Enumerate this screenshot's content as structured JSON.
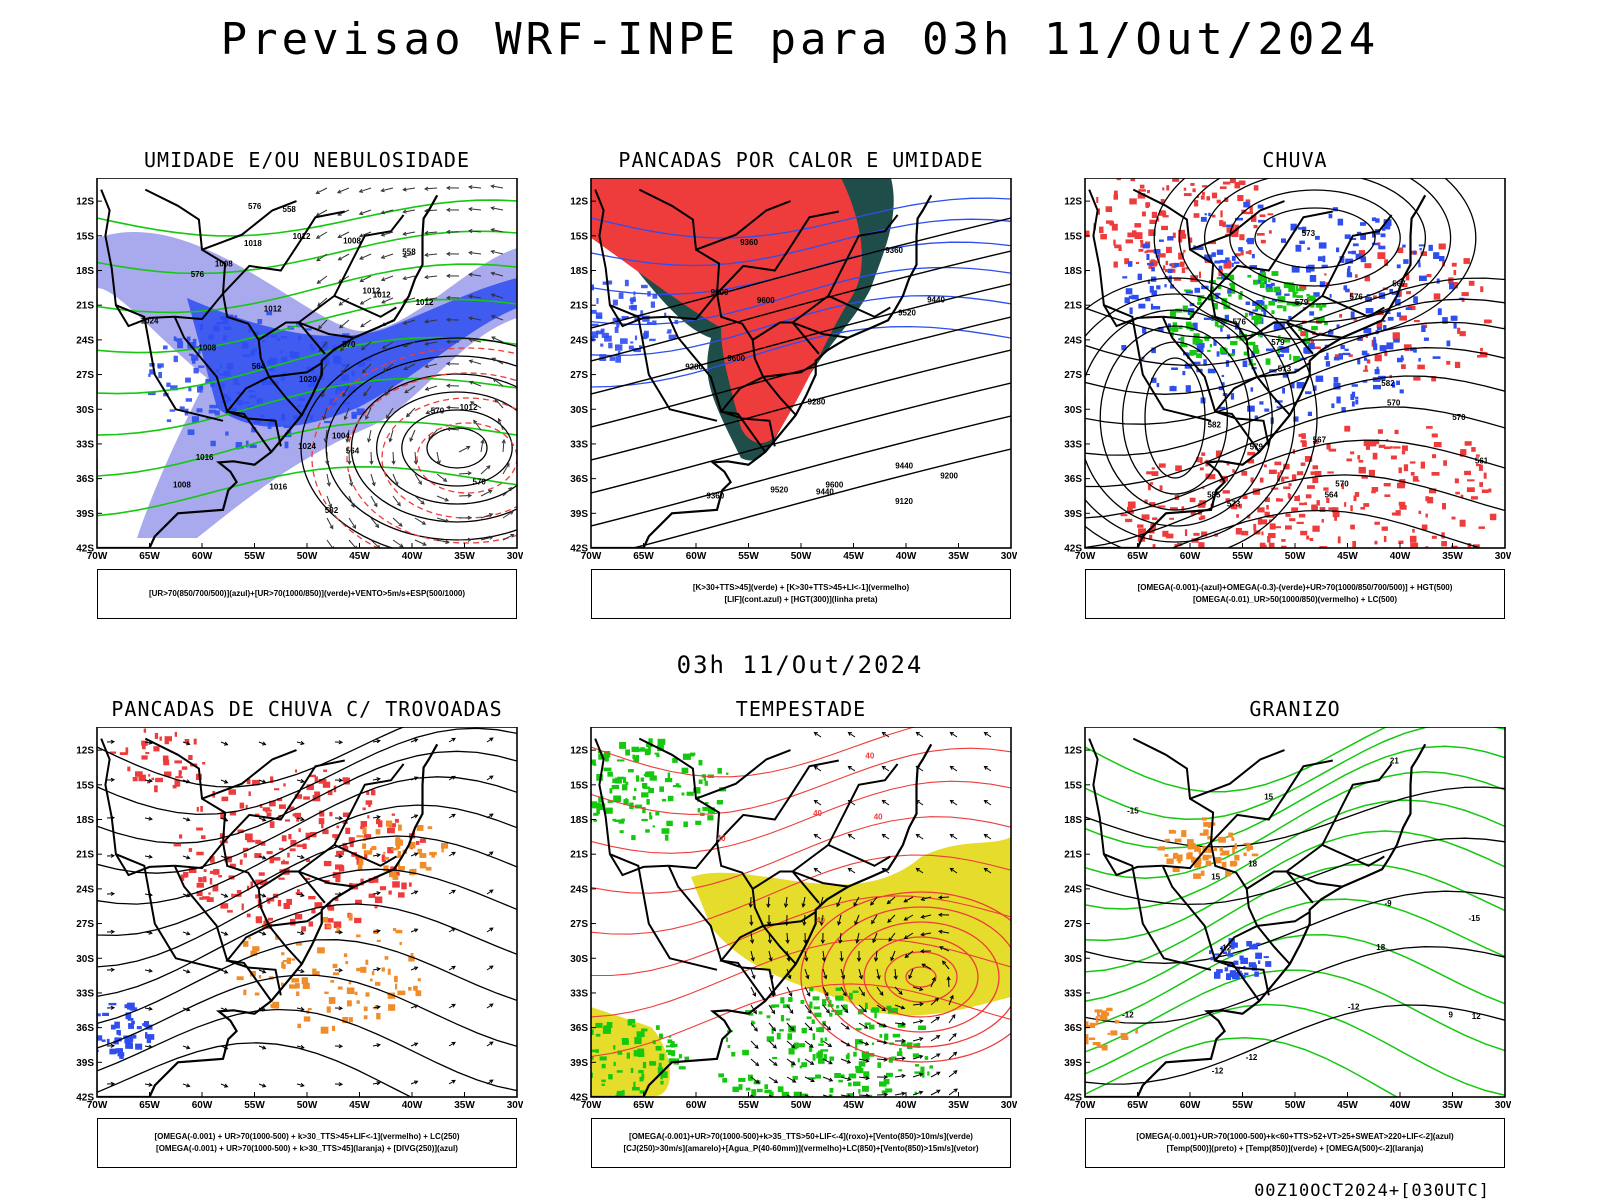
{
  "main_title": "Previsao WRF-INPE  para 03h 11/Out/2024",
  "mid_title": "03h 11/Out/2024",
  "footer": "00Z10OCT2024+[030UTC]",
  "axes": {
    "lat_labels": [
      "12S",
      "15S",
      "18S",
      "21S",
      "24S",
      "27S",
      "30S",
      "33S",
      "36S",
      "39S",
      "42S"
    ],
    "lon_labels": [
      "70W",
      "65W",
      "60W",
      "55W",
      "50W",
      "45W",
      "40W",
      "35W",
      "30W"
    ]
  },
  "colors": {
    "red": "#ee3b3b",
    "blue": "#2e4ef0",
    "lavender": "#a9a9ee",
    "green": "#15c80f",
    "orange": "#f08c2a",
    "yellow": "#e6dc2c",
    "dark_teal": "#1f4d49"
  },
  "panels": [
    {
      "title": "UMIDADE E/OU NEBULOSIDADE",
      "legend": [
        "[UR>70(850/700/500)](azul)+[UR>70(1000/850)](verde)+VENTO>5m/s+ESP(500/1000)"
      ],
      "contour_labels": [
        "1008",
        "1008",
        "1012",
        "1016",
        "1016",
        "1018",
        "1008",
        "1012",
        "1012",
        "1012",
        "1024",
        "1024",
        "1020",
        "1004",
        "1012",
        "1012",
        "1008",
        "576",
        "570",
        "570",
        "564",
        "564",
        "558",
        "558",
        "582",
        "576",
        "570"
      ]
    },
    {
      "title": "PANCADAS POR CALOR E UMIDADE",
      "legend": [
        "[K>30+TTS>45](verde) + [K>30+TTS>45+LI<-1](vermelho)",
        "[LIF](cont.azul) + [HGT(300)](linha preta)"
      ],
      "contour_labels": [
        "9600",
        "9520",
        "9600",
        "9600",
        "9600",
        "9520",
        "9440",
        "9440",
        "9440",
        "9360",
        "9360",
        "9280",
        "9200",
        "9120",
        "9280",
        "9360"
      ]
    },
    {
      "title": "CHUVA",
      "legend": [
        "[OMEGA(-0.001)-(azul)+OMEGA(-0.3)-(verde)+UR>70(1000/850/700/500)] + HGT(500)",
        "[OMEGA(-0.01)_UR>50(1000/850)(vermelho) + LC(500)"
      ],
      "contour_labels": [
        "585",
        "582",
        "579",
        "576",
        "573",
        "570",
        "579",
        "576",
        "573",
        "570",
        "567",
        "564",
        "561",
        "567",
        "570",
        "573",
        "579",
        "582"
      ]
    },
    {
      "title": "PANCADAS DE CHUVA C/ TROVOADAS",
      "legend": [
        "[OMEGA(-0.001) + UR>70(1000-500) + k>30_TTS>45+LIF<-1](vermelho) + LC(250)",
        "[OMEGA(-0.001) + UR>70(1000-500) + k>30_TTS>45](laranja) + [DIVG(250)](azul)"
      ],
      "contour_labels": []
    },
    {
      "title": "TEMPESTADE",
      "legend": [
        "[OMEGA(-0.001)+UR>70(1000-500)+k>35_TTS>50+LIF<-4](roxo)+[Vento(850)>10m/s](verde)",
        "[CJ(250)>30m/s](amarelo)+[Agua_P(40-60mm)](vermelho)+LC(850)+[Vento(850)>15m/s](vetor)"
      ],
      "contour_labels": [
        "40",
        "40",
        "40",
        "40",
        "40"
      ]
    },
    {
      "title": "GRANIZO",
      "legend": [
        "[OMEGA(-0.001)+UR>70(1000-500)+k<60+TTS>52+VT>25+SWEAT>220+LIF<-2](azul)",
        "[Temp(500)](preto) + [Temp(850)](verde) + [OMEGA(500)<-2](laranja)"
      ],
      "contour_labels": [
        "-12",
        "-12",
        "-15",
        "-15",
        "-9",
        "-12",
        "-12",
        "15",
        "18",
        "21",
        "15",
        "18",
        "12",
        "9",
        "-12"
      ]
    }
  ]
}
